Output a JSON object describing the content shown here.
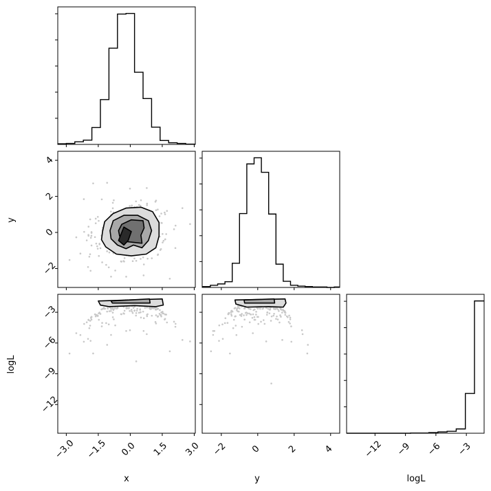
{
  "chart_data": {
    "type": "corner",
    "parameters": [
      "x",
      "y",
      "logL"
    ],
    "ranges": {
      "x": [
        -3.4,
        3.05
      ],
      "y": [
        -3.05,
        4.5
      ],
      "logL": [
        -14.8,
        -1.25
      ]
    },
    "ticks": {
      "x": {
        "values": [
          -3.0,
          -1.5,
          0.0,
          1.5,
          3.0
        ],
        "labels": [
          "−3.0",
          "−1.5",
          "0.0",
          "1.5",
          "3.0"
        ]
      },
      "y": {
        "values": [
          -2,
          0,
          2,
          4
        ],
        "labels": [
          "−2",
          "0",
          "2",
          "4"
        ]
      },
      "logL": {
        "values": [
          -12,
          -9,
          -6,
          -3
        ],
        "labels": [
          "−12",
          "−9",
          "−6",
          "−3"
        ]
      }
    },
    "hist_x": {
      "bin_edges": [
        -3.4,
        -3.0,
        -2.6,
        -2.2,
        -1.8,
        -1.4,
        -1.0,
        -0.6,
        -0.2,
        0.2,
        0.6,
        1.0,
        1.4,
        1.8,
        2.2,
        2.6,
        3.05
      ],
      "counts": [
        2,
        3,
        8,
        13,
        52,
        138,
        296,
        401,
        403,
        222,
        141,
        53,
        12,
        5,
        3,
        1
      ]
    },
    "hist_y": {
      "bin_edges": [
        -3.05,
        -2.6,
        -2.2,
        -1.8,
        -1.4,
        -1.0,
        -0.6,
        -0.2,
        0.2,
        0.6,
        1.0,
        1.4,
        1.8,
        2.2,
        2.6,
        3.0,
        3.4,
        3.8,
        4.2,
        4.5
      ],
      "counts": [
        2,
        5,
        8,
        13,
        55,
        168,
        281,
        295,
        262,
        167,
        53,
        14,
        5,
        3,
        2,
        1,
        1,
        0,
        1
      ]
    },
    "hist_logL": {
      "bin_edges": [
        -14.8,
        -13.9,
        -13.0,
        -12.1,
        -11.2,
        -10.3,
        -9.4,
        -8.5,
        -7.6,
        -6.7,
        -5.8,
        -4.9,
        -4.0,
        -3.1,
        -2.2,
        -1.25
      ],
      "counts": [
        0,
        0,
        0,
        0,
        0,
        0,
        0,
        1,
        1,
        3,
        6,
        9,
        20,
        185,
        616
      ]
    },
    "xy_contours": [
      [
        [
          -1.3,
          0.05
        ],
        [
          -1.2,
          0.6
        ],
        [
          -0.8,
          1.05
        ],
        [
          -0.2,
          1.35
        ],
        [
          0.5,
          1.4
        ],
        [
          1.05,
          1.15
        ],
        [
          1.35,
          0.55
        ],
        [
          1.35,
          -0.2
        ],
        [
          1.2,
          -0.85
        ],
        [
          0.75,
          -1.2
        ],
        [
          0.05,
          -1.3
        ],
        [
          -0.65,
          -1.2
        ],
        [
          -1.15,
          -0.8
        ],
        [
          -1.35,
          -0.4
        ]
      ],
      [
        [
          -0.95,
          0.1
        ],
        [
          -0.8,
          0.65
        ],
        [
          -0.3,
          0.95
        ],
        [
          0.35,
          0.95
        ],
        [
          0.85,
          0.65
        ],
        [
          1.0,
          0.1
        ],
        [
          0.85,
          -0.45
        ],
        [
          0.55,
          -0.85
        ],
        [
          0.15,
          -0.7
        ],
        [
          -0.2,
          -0.9
        ],
        [
          -0.6,
          -0.7
        ],
        [
          -0.9,
          -0.35
        ]
      ],
      [
        [
          -0.55,
          0.1
        ],
        [
          -0.4,
          0.45
        ],
        [
          0.05,
          0.7
        ],
        [
          0.6,
          0.65
        ],
        [
          0.65,
          0.25
        ],
        [
          0.5,
          -0.15
        ],
        [
          0.55,
          -0.6
        ],
        [
          0.15,
          -0.55
        ],
        [
          -0.25,
          -0.5
        ],
        [
          -0.5,
          -0.2
        ]
      ],
      [
        [
          -0.55,
          -0.45
        ],
        [
          -0.3,
          0.3
        ],
        [
          0.05,
          0.05
        ],
        [
          -0.1,
          -0.45
        ],
        [
          -0.3,
          -0.7
        ]
      ]
    ],
    "logL_contour_x": [
      [
        -1.5,
        -1.9
      ],
      [
        -1.4,
        -2.3
      ],
      [
        -1.0,
        -2.45
      ],
      [
        0.2,
        -2.35
      ],
      [
        1.2,
        -2.45
      ],
      [
        1.55,
        -2.3
      ],
      [
        1.5,
        -1.7
      ]
    ],
    "logL_contour_y": [
      [
        -1.25,
        -1.8
      ],
      [
        -1.2,
        -2.2
      ],
      [
        -0.6,
        -2.5
      ],
      [
        0.6,
        -2.45
      ],
      [
        1.4,
        -2.5
      ],
      [
        1.55,
        -2.1
      ],
      [
        1.5,
        -1.7
      ]
    ],
    "labels": {
      "x": "x",
      "y": "y",
      "logL": "logL"
    }
  }
}
